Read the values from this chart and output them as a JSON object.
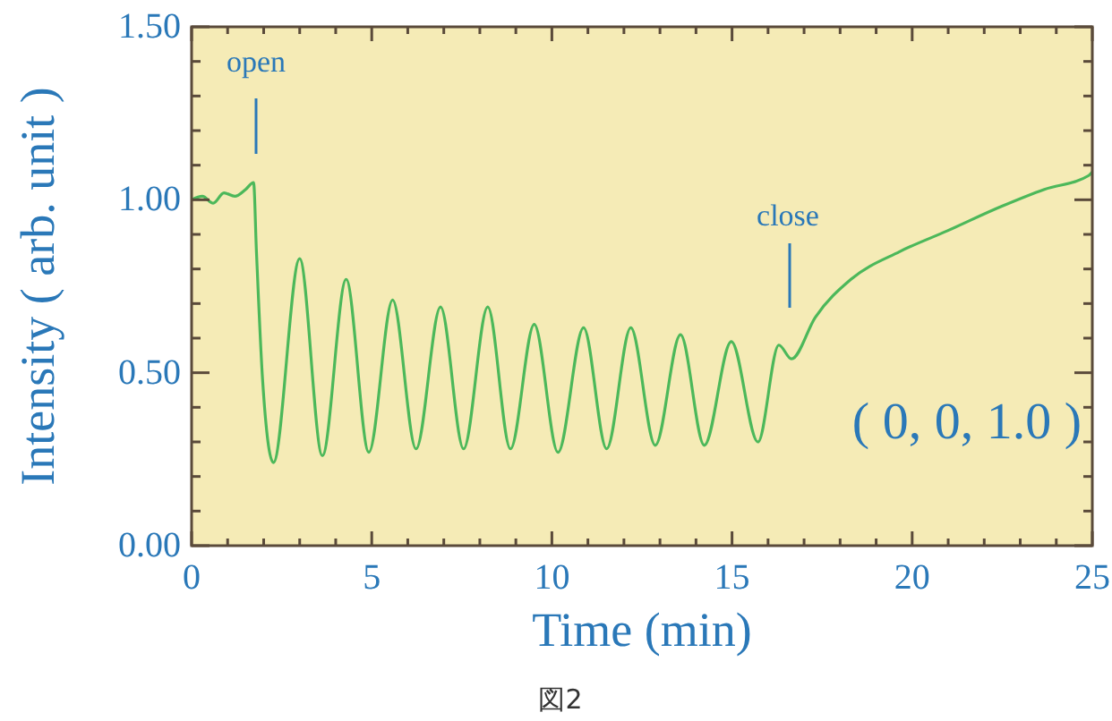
{
  "chart_data": {
    "type": "line",
    "xlabel": "Time (min)",
    "ylabel": "Intensity ( arb. unit )",
    "xlim": [
      0,
      25
    ],
    "ylim": [
      0,
      1.5
    ],
    "xticks": [
      0,
      {
        "value": 1,
        "label": null
      },
      {
        "value": 2,
        "label": null
      },
      {
        "value": 3,
        "label": null
      },
      {
        "value": 4,
        "label": null
      },
      5,
      {
        "value": 6,
        "label": null
      },
      {
        "value": 7,
        "label": null
      },
      {
        "value": 8,
        "label": null
      },
      {
        "value": 9,
        "label": null
      },
      10,
      {
        "value": 11,
        "label": null
      },
      {
        "value": 12,
        "label": null
      },
      {
        "value": 13,
        "label": null
      },
      {
        "value": 14,
        "label": null
      },
      15,
      {
        "value": 16,
        "label": null
      },
      {
        "value": 17,
        "label": null
      },
      {
        "value": 18,
        "label": null
      },
      {
        "value": 19,
        "label": null
      },
      20,
      {
        "value": 21,
        "label": null
      },
      {
        "value": 22,
        "label": null
      },
      {
        "value": 23,
        "label": null
      },
      {
        "value": 24,
        "label": null
      },
      25
    ],
    "yticks": [
      {
        "value": 0,
        "label": "0.00"
      },
      {
        "value": 0.1,
        "label": null
      },
      {
        "value": 0.2,
        "label": null
      },
      {
        "value": 0.3,
        "label": null
      },
      {
        "value": 0.4,
        "label": null
      },
      {
        "value": 0.5,
        "label": "0.50"
      },
      {
        "value": 0.6,
        "label": null
      },
      {
        "value": 0.7,
        "label": null
      },
      {
        "value": 0.8,
        "label": null
      },
      {
        "value": 0.9,
        "label": null
      },
      {
        "value": 1,
        "label": "1.00"
      },
      {
        "value": 1.1,
        "label": null
      },
      {
        "value": 1.2,
        "label": null
      },
      {
        "value": 1.3,
        "label": null
      },
      {
        "value": 1.4,
        "label": null
      },
      {
        "value": 1.5,
        "label": "1.50"
      }
    ],
    "grid": false,
    "marker": "none",
    "line_style": "solid",
    "series": [
      {
        "color": "#4cb85a",
        "x": [
          0,
          0.3,
          0.6,
          0.9,
          1.2,
          1.5,
          1.72,
          1.8,
          1.97,
          2.27,
          3.0,
          3.63,
          4.29,
          4.92,
          5.58,
          6.23,
          6.91,
          7.55,
          8.22,
          8.85,
          9.51,
          10.17,
          10.88,
          11.52,
          12.19,
          12.87,
          13.57,
          14.23,
          14.98,
          15.72,
          16.3,
          16.65,
          17.31,
          18.3,
          19.65,
          20.97,
          22.46,
          23.67,
          24.9,
          25
        ],
        "values": [
          1.0,
          1.01,
          0.99,
          1.02,
          1.01,
          1.03,
          1.05,
          0.85,
          0.48,
          0.24,
          0.83,
          0.26,
          0.77,
          0.27,
          0.71,
          0.28,
          0.69,
          0.28,
          0.69,
          0.28,
          0.64,
          0.27,
          0.63,
          0.28,
          0.63,
          0.29,
          0.61,
          0.29,
          0.59,
          0.3,
          0.58,
          0.54,
          0.66,
          0.77,
          0.85,
          0.91,
          0.98,
          1.03,
          1.07,
          1.08
        ]
      }
    ],
    "annotations": [
      "open",
      "close",
      "( 0, 0, 1.0 )",
      "図2"
    ]
  }
}
